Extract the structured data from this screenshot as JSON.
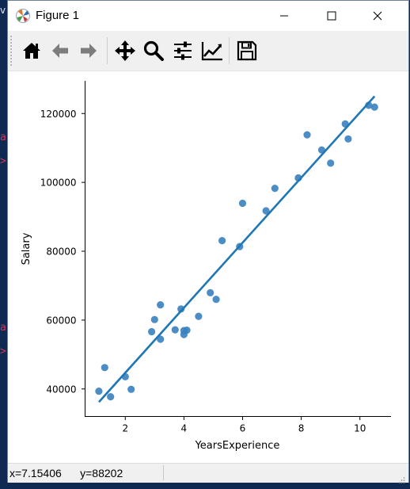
{
  "background": {
    "fragments": [
      {
        "text": "v"
      },
      {
        "text": "a"
      },
      {
        "text": ">"
      },
      {
        "text": "a"
      },
      {
        "text": ">"
      }
    ]
  },
  "window": {
    "title": "Figure 1",
    "controls": {
      "minimize": "minimize",
      "maximize": "maximize",
      "close": "close"
    }
  },
  "toolbar": {
    "buttons": [
      {
        "name": "home-button",
        "icon": "home-icon"
      },
      {
        "name": "back-button",
        "icon": "arrow-left-icon"
      },
      {
        "name": "forward-button",
        "icon": "arrow-right-icon"
      },
      {
        "name": "pan-button",
        "icon": "move-icon"
      },
      {
        "name": "zoom-button",
        "icon": "magnifier-icon"
      },
      {
        "name": "subplots-button",
        "icon": "sliders-icon"
      },
      {
        "name": "customize-button",
        "icon": "line-chart-icon"
      },
      {
        "name": "save-button",
        "icon": "floppy-disk-icon"
      }
    ]
  },
  "status": {
    "coordinates": "x=7.15406      y=88202"
  },
  "colors": {
    "series": "#1f77b4",
    "point": "#3a81bf",
    "window_bg": "#ffffff",
    "toolbar_bg": "#f0f0f0",
    "desktop_bg": "#0f2a52"
  },
  "chart_data": {
    "type": "scatter",
    "title": "",
    "xlabel": "YearsExperience",
    "ylabel": "Salary",
    "xlim": [
      0.63,
      11.06
    ],
    "ylim": [
      32000,
      129500
    ],
    "xticks": [
      2,
      4,
      6,
      8,
      10
    ],
    "yticks": [
      40000,
      60000,
      80000,
      100000,
      120000
    ],
    "xtick_labels": [
      "2",
      "4",
      "6",
      "8",
      "10"
    ],
    "ytick_labels": [
      "40000",
      "60000",
      "80000",
      "100000",
      "120000"
    ],
    "grid": false,
    "series": [
      {
        "type": "scatter",
        "x": [
          1.1,
          1.3,
          1.5,
          2.0,
          2.2,
          2.9,
          3.0,
          3.2,
          3.2,
          3.7,
          3.9,
          4.0,
          4.0,
          4.1,
          4.5,
          4.9,
          5.1,
          5.3,
          5.9,
          6.0,
          6.8,
          7.1,
          7.9,
          8.2,
          8.7,
          9.0,
          9.5,
          9.6,
          10.3,
          10.5
        ],
        "y": [
          39343,
          46205,
          37731,
          43525,
          39891,
          56642,
          60150,
          54445,
          64445,
          57189,
          63218,
          55794,
          56957,
          57081,
          61111,
          67938,
          66029,
          83088,
          81363,
          93940,
          91738,
          98273,
          101302,
          113812,
          109431,
          105582,
          116969,
          112635,
          122391,
          121872
        ]
      },
      {
        "type": "line",
        "x": [
          1.1,
          10.5
        ],
        "y": [
          36188,
          125019
        ]
      }
    ]
  }
}
